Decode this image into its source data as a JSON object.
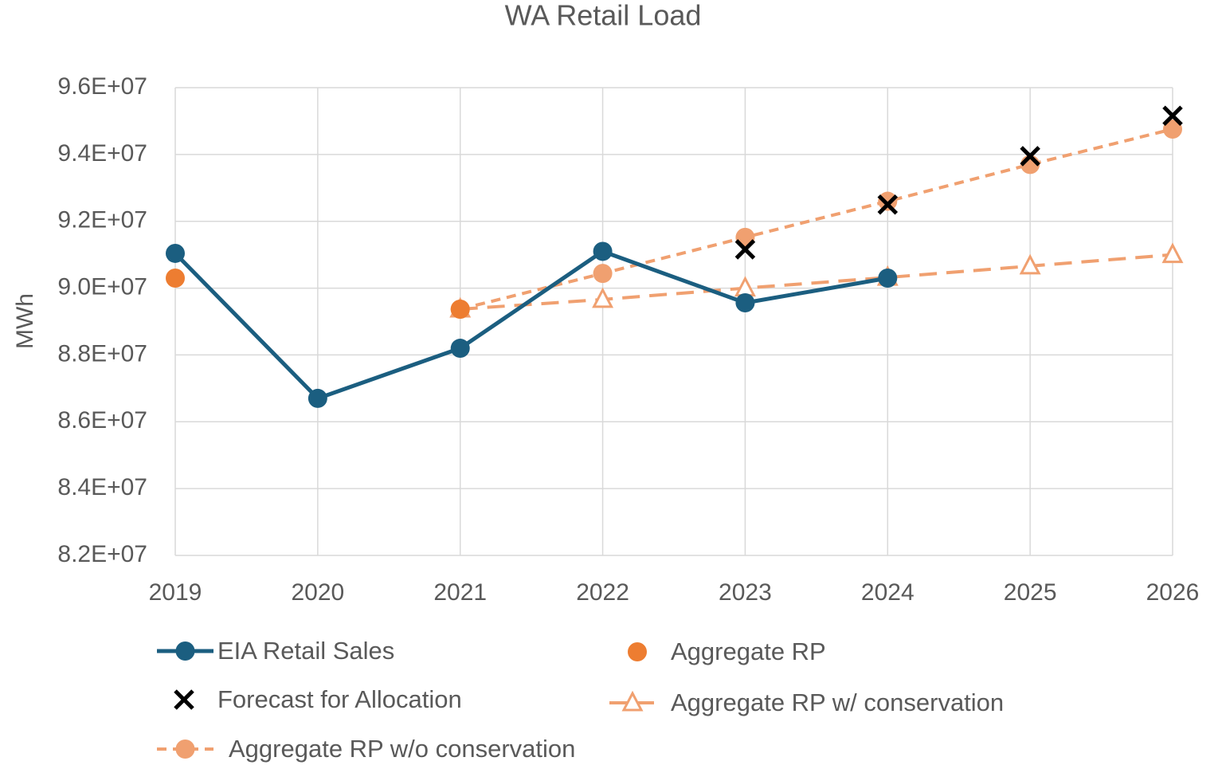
{
  "chart_data": {
    "type": "line",
    "title": "WA Retail Load",
    "y_label": "MWh",
    "categories": [
      "2019",
      "2020",
      "2021",
      "2022",
      "2023",
      "2024",
      "2025",
      "2026"
    ],
    "ylim": [
      82000000,
      96000000
    ],
    "yticks": [
      {
        "value": 82000000,
        "label": "8.2E+07"
      },
      {
        "value": 84000000,
        "label": "8.4E+07"
      },
      {
        "value": 86000000,
        "label": "8.6E+07"
      },
      {
        "value": 88000000,
        "label": "8.8E+07"
      },
      {
        "value": 90000000,
        "label": "9.0E+07"
      },
      {
        "value": 92000000,
        "label": "9.2E+07"
      },
      {
        "value": 94000000,
        "label": "9.4E+07"
      },
      {
        "value": 96000000,
        "label": "9.6E+07"
      }
    ],
    "grid": true,
    "series": [
      {
        "name": "EIA Retail Sales",
        "color": "#1b5e80",
        "line": "solid",
        "marker": "circle",
        "values": [
          91040000,
          86700000,
          88200000,
          91100000,
          89560000,
          90300000,
          null,
          null
        ]
      },
      {
        "name": "Aggregate RP",
        "color": "#ed7d31",
        "line": "none",
        "marker": "circle",
        "values": [
          90300000,
          null,
          89370000,
          null,
          null,
          null,
          null,
          null
        ]
      },
      {
        "name": "Forecast for Allocation",
        "color": "#000000",
        "line": "none",
        "marker": "x",
        "values": [
          null,
          null,
          null,
          null,
          91160000,
          92500000,
          93950000,
          95160000
        ]
      },
      {
        "name": "Aggregate RP w/ conservation",
        "color": "#f0a070",
        "line": "dashed",
        "marker": "triangle",
        "values": [
          null,
          null,
          89370000,
          89660000,
          90000000,
          90320000,
          90660000,
          91000000
        ]
      },
      {
        "name": "Aggregate RP w/o conservation",
        "color": "#f0a070",
        "line": "dotted",
        "marker": "circle",
        "values": [
          null,
          null,
          89370000,
          90440000,
          91520000,
          92600000,
          93700000,
          94760000
        ]
      }
    ]
  }
}
